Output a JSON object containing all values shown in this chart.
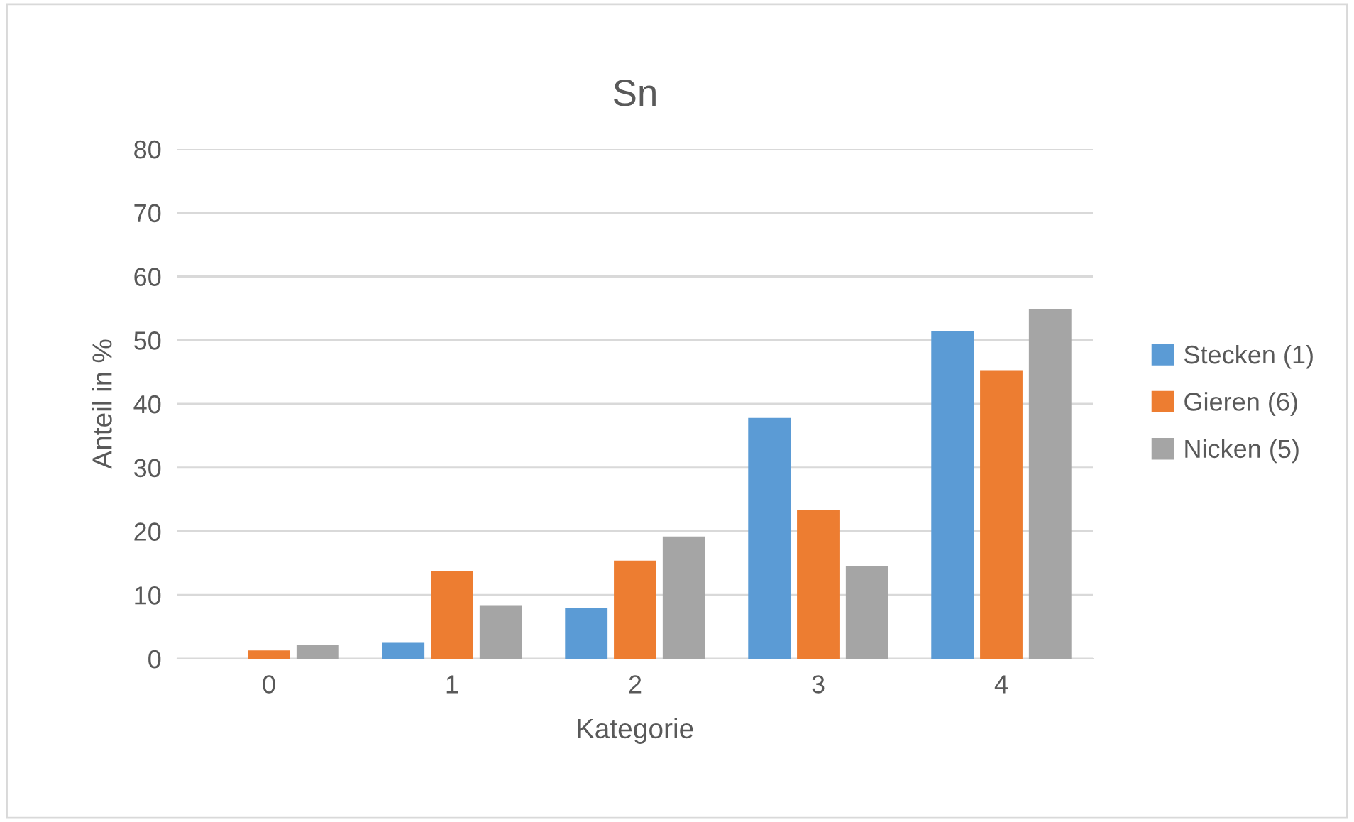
{
  "chart_data": {
    "type": "bar",
    "title": "Sn",
    "xlabel": "Kategorie",
    "ylabel": "Anteil in %",
    "categories": [
      "0",
      "1",
      "2",
      "3",
      "4"
    ],
    "series": [
      {
        "name": "Stecken (1)",
        "color": "#5b9bd5",
        "values": [
          0,
          2.5,
          7.9,
          37.8,
          51.4
        ]
      },
      {
        "name": "Gieren (6)",
        "color": "#ed7d31",
        "values": [
          1.3,
          13.7,
          15.4,
          23.4,
          45.3
        ]
      },
      {
        "name": "Nicken (5)",
        "color": "#a5a5a5",
        "values": [
          2.2,
          8.3,
          19.2,
          14.5,
          54.9
        ]
      }
    ],
    "ylim": [
      0,
      80
    ],
    "yticks": [
      0,
      10,
      20,
      30,
      40,
      50,
      60,
      70,
      80
    ],
    "grid": "y",
    "legend": "right"
  }
}
